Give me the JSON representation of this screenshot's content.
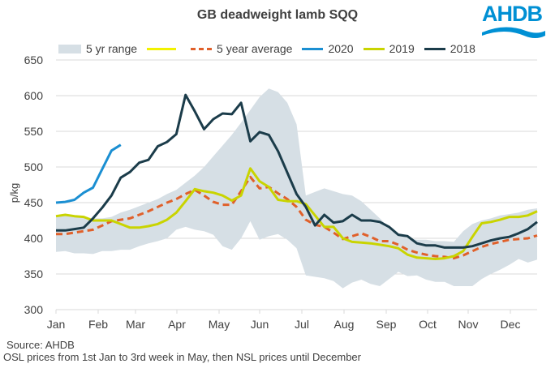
{
  "chart_data": {
    "type": "line",
    "title": "GB deadweight lamb SQQ",
    "xlabel": "",
    "ylabel": "p/kg",
    "ylim": [
      300,
      650
    ],
    "yticks": [
      300,
      350,
      400,
      450,
      500,
      550,
      600,
      650
    ],
    "month_labels": [
      "Jan",
      "Feb",
      "Mar",
      "Apr",
      "May",
      "Jun",
      "Jul",
      "Aug",
      "Sep",
      "Oct",
      "Nov",
      "Dec"
    ],
    "x_unit": "week",
    "grid": "horizontal",
    "legend_position": "top",
    "legend": [
      "5 yr range",
      "",
      "5 year average",
      "2020",
      "2019",
      "2018"
    ],
    "range": {
      "name": "5 yr range",
      "color": "#d6dfe5",
      "low": [
        381,
        382,
        379,
        379,
        378,
        382,
        382,
        384,
        384,
        389,
        393,
        396,
        400,
        412,
        416,
        412,
        410,
        405,
        389,
        384,
        400,
        424,
        398,
        403,
        406,
        398,
        386,
        348,
        346,
        344,
        340,
        330,
        338,
        342,
        336,
        333,
        343,
        353,
        347,
        348,
        342,
        339,
        339,
        333,
        333,
        333,
        343,
        350,
        356,
        363,
        371,
        366,
        370
      ],
      "high": [
        432,
        432,
        430,
        430,
        428,
        428,
        430,
        436,
        440,
        445,
        450,
        455,
        462,
        468,
        478,
        488,
        500,
        515,
        530,
        545,
        562,
        580,
        598,
        610,
        605,
        590,
        560,
        460,
        465,
        470,
        466,
        462,
        460,
        452,
        440,
        428,
        415,
        405,
        400,
        398,
        398,
        396,
        396,
        395,
        410,
        420,
        425,
        428,
        432,
        434,
        436,
        440,
        442
      ]
    },
    "series": [
      {
        "name": "5 year average",
        "color": "#e0602a",
        "style": "dashed",
        "values": [
          406,
          406,
          408,
          410,
          412,
          418,
          424,
          426,
          428,
          433,
          438,
          444,
          450,
          455,
          462,
          468,
          460,
          451,
          447,
          447,
          466,
          486,
          470,
          472,
          463,
          455,
          444,
          426,
          419,
          416,
          408,
          399,
          403,
          407,
          402,
          396,
          396,
          391,
          384,
          380,
          377,
          375,
          374,
          372,
          376,
          382,
          388,
          392,
          395,
          398,
          399,
          400,
          404
        ]
      },
      {
        "name": "2020",
        "color": "#1b8fd2",
        "style": "solid",
        "values": [
          450,
          451,
          454,
          464,
          471,
          497,
          523,
          531
        ]
      },
      {
        "name": "2019",
        "color": "#c9d400",
        "style": "solid",
        "values": [
          431,
          433,
          431,
          430,
          425,
          425,
          425,
          420,
          415,
          415,
          417,
          420,
          426,
          436,
          452,
          469,
          466,
          464,
          460,
          453,
          460,
          498,
          480,
          472,
          454,
          452,
          452,
          448,
          432,
          416,
          416,
          400,
          395,
          394,
          393,
          391,
          389,
          386,
          377,
          373,
          372,
          371,
          372,
          375,
          382,
          402,
          421,
          423,
          426,
          430,
          430,
          432,
          438
        ]
      },
      {
        "name": "2018",
        "color": "#1b3c4a",
        "style": "solid",
        "values": [
          411,
          411,
          413,
          415,
          428,
          443,
          460,
          485,
          493,
          506,
          510,
          529,
          535,
          546,
          601,
          578,
          553,
          567,
          575,
          574,
          590,
          536,
          549,
          545,
          522,
          492,
          462,
          444,
          418,
          433,
          422,
          424,
          433,
          425,
          425,
          423,
          416,
          405,
          403,
          393,
          390,
          390,
          387,
          387,
          387,
          389,
          393,
          397,
          400,
          402,
          407,
          413,
          423
        ]
      }
    ]
  },
  "header": {
    "title": "GB deadweight lamb SQQ",
    "logo_text": "AHDB"
  },
  "legend_items": [
    {
      "label": "5 yr range"
    },
    {
      "label": ""
    },
    {
      "label": "5 year average"
    },
    {
      "label": "2020"
    },
    {
      "label": "2019"
    },
    {
      "label": "2018"
    }
  ],
  "footer": {
    "source": "Source: AHDB",
    "note": "OSL prices from 1st Jan to 3rd week in May, then NSL prices until December"
  }
}
